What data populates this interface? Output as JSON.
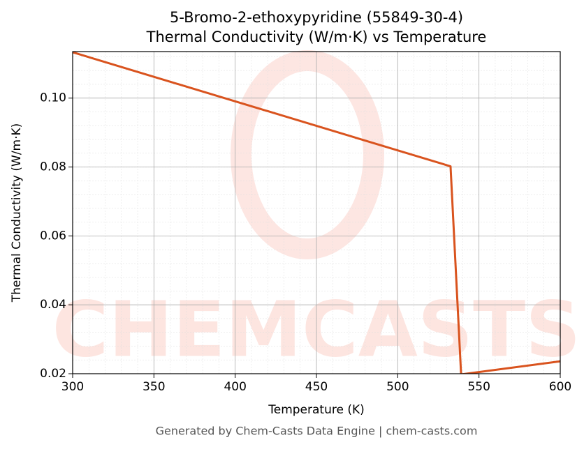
{
  "chart_data": {
    "type": "line",
    "title": "5-Bromo-2-ethoxypyridine (55849-30-4)",
    "subtitle": "Thermal Conductivity (W/m·K) vs Temperature",
    "x_label": "Temperature (K)",
    "y_label": "Thermal Conductivity (W/m·K)",
    "footer": "Generated by Chem-Casts Data Engine | chem-casts.com",
    "watermark": "CHEMCASTS",
    "x": [
      300,
      532.5,
      539,
      600
    ],
    "series": [
      {
        "name": "Thermal Conductivity",
        "color": "#d9531e",
        "values": [
          0.1133,
          0.0802,
          0.0198,
          0.0236
        ]
      }
    ],
    "xlim": [
      300,
      600
    ],
    "xticks": [
      300,
      350,
      400,
      450,
      500,
      550,
      600
    ],
    "ylim": [
      0.02,
      0.1135
    ],
    "yticks": [
      0.02,
      0.04,
      0.06,
      0.08,
      {
        "value": 0.1,
        "label": "0.10"
      }
    ],
    "grid": true
  }
}
